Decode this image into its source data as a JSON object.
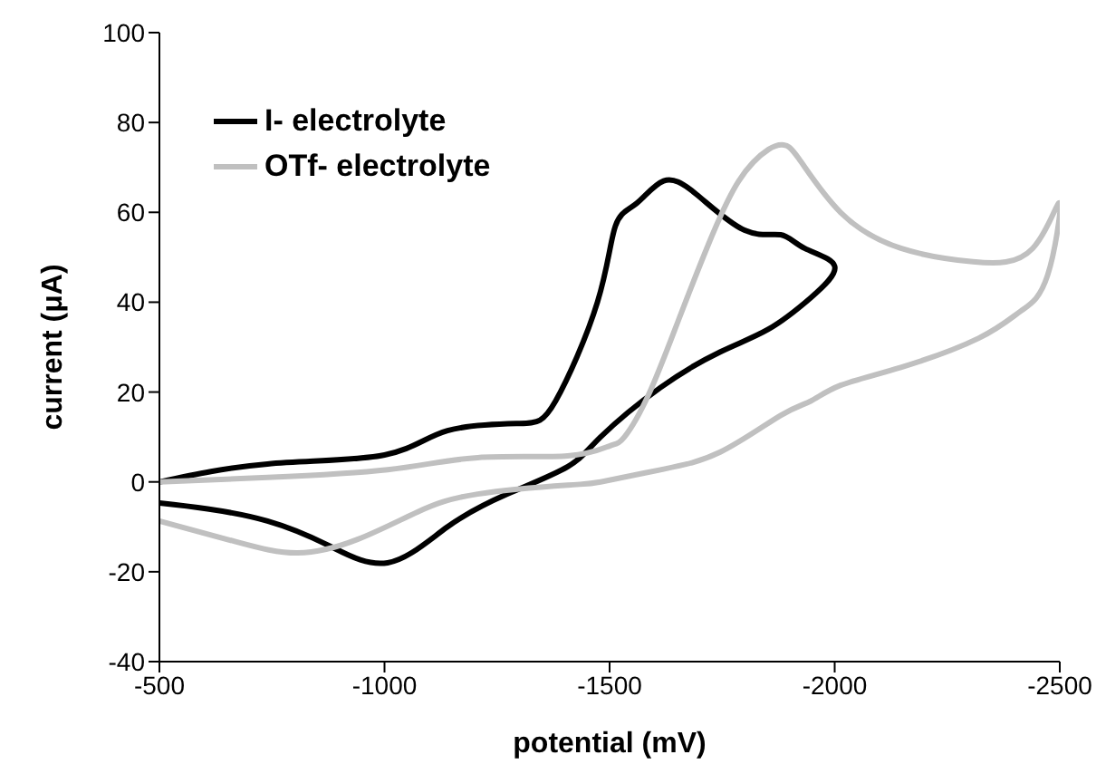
{
  "chart_data": {
    "type": "line",
    "xlabel": "potential (mV)",
    "ylabel": "current (μA)",
    "xlim": [
      -500,
      -2500
    ],
    "xticks": [
      -500,
      -1000,
      -1500,
      -2000,
      -2500
    ],
    "ylim": [
      -40,
      100
    ],
    "yticks": [
      -40,
      -20,
      0,
      20,
      40,
      60,
      80,
      100
    ],
    "grid": false,
    "legend": "top left",
    "marker": "none",
    "line_style": "solid",
    "series": [
      {
        "name": "I- electrolyte",
        "color": "#000000",
        "x": [
          -500,
          -607,
          -740,
          -873,
          -1007,
          -1140,
          -1273,
          -1407,
          -1480,
          -1613,
          -1747,
          -1853,
          -1947,
          -2000,
          -1933,
          -1880,
          -1800,
          -1693,
          -1620,
          -1560,
          -1513,
          -1473,
          -1380,
          -1300,
          -1140,
          -1000,
          -740,
          -500
        ],
        "values": [
          -4.7,
          -6,
          -8.7,
          -14,
          -18,
          -10,
          -2.7,
          3.4,
          10,
          21,
          29,
          34,
          41,
          48,
          52,
          55,
          56,
          64,
          67,
          62,
          57,
          40,
          18,
          13,
          11.4,
          6,
          4,
          0
        ]
      },
      {
        "name": "OTf- electrolyte",
        "color": "#c0c0c0",
        "x": [
          -500,
          -673,
          -807,
          -940,
          -1073,
          -1207,
          -1407,
          -1480,
          -1613,
          -1747,
          -1880,
          -1947,
          -2013,
          -2147,
          -2320,
          -2413,
          -2473,
          -2500,
          -2440,
          -2307,
          -2147,
          -2013,
          -1920,
          -1887,
          -1853,
          -1787,
          -1720,
          -1653,
          -1587,
          -1533,
          -1500,
          -1407,
          -1207,
          -1007,
          -740,
          -500
        ],
        "values": [
          -8.7,
          -13.4,
          -15.8,
          -12.8,
          -6.7,
          -2.7,
          -0.7,
          0,
          2.7,
          6.7,
          14.8,
          18,
          21.5,
          25.5,
          32,
          38,
          46,
          62,
          52,
          49,
          52,
          60,
          72,
          75,
          74,
          67,
          53,
          36,
          19.5,
          10,
          8,
          5.8,
          5.4,
          2.7,
          1,
          0
        ]
      }
    ]
  }
}
